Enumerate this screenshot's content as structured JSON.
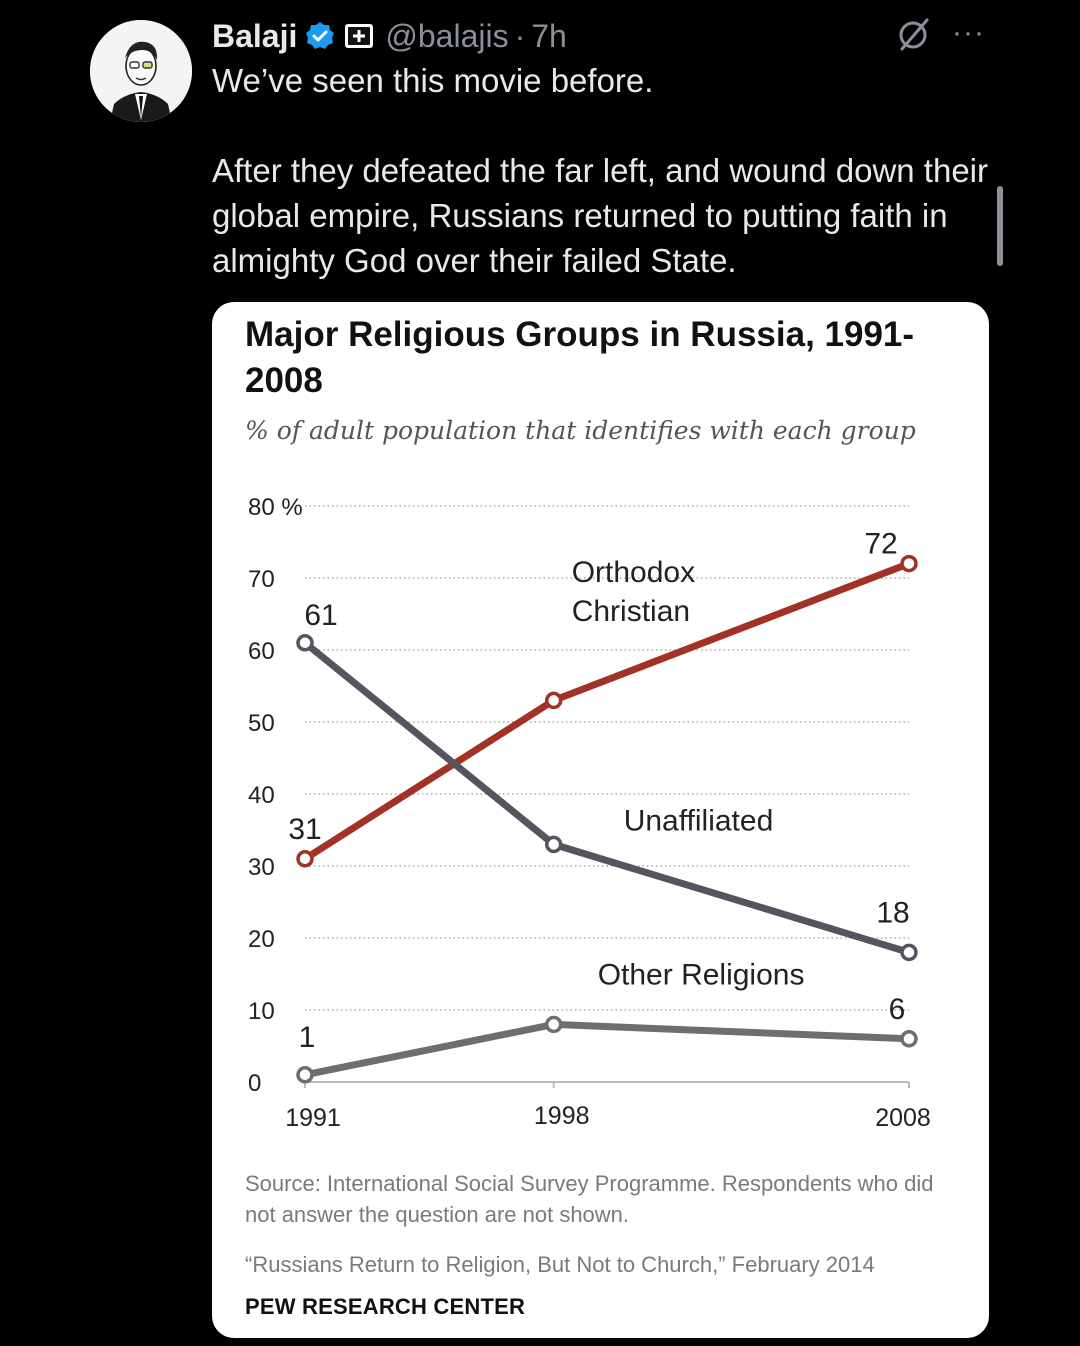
{
  "tweet": {
    "author_name": "Balaji",
    "handle": "@balajis",
    "time": "7h",
    "separator": "·",
    "more_label": "···",
    "text_lines": [
      "We’ve seen this movie before.",
      "After they defeated the far left, and wound down their global empire, Russians returned to putting faith in almighty God over their failed State."
    ]
  },
  "colors": {
    "background": "#000000",
    "verified": "#1d9bf0",
    "orthodox": "#a23225",
    "unaffiliated": "#57535f",
    "other": "#6e6e6e"
  },
  "chart_data": {
    "type": "line",
    "title": "Major Religious Groups in Russia, 1991-2008",
    "subtitle": "% of adult population that identifies with each group",
    "x": [
      1991,
      1998,
      2008
    ],
    "x_tick_labels": [
      "1991",
      "1998",
      "2008"
    ],
    "y_ticks": [
      0,
      10,
      20,
      30,
      40,
      50,
      60,
      70,
      80
    ],
    "y_tick_labels": [
      "0",
      "10",
      "20",
      "30",
      "40",
      "50",
      "60",
      "70",
      "80 %"
    ],
    "ylim": [
      0,
      80
    ],
    "grid": true,
    "series": [
      {
        "name": "Orthodox Christian",
        "name_lines": [
          "Orthodox",
          "Christian"
        ],
        "values": [
          31,
          53,
          72
        ],
        "labels": [
          "31",
          "",
          "72"
        ],
        "color": "#a23225"
      },
      {
        "name": "Unaffiliated",
        "name_lines": [
          "Unaffiliated"
        ],
        "values": [
          61,
          33,
          18
        ],
        "labels": [
          "61",
          "",
          "18"
        ],
        "color": "#57535f"
      },
      {
        "name": "Other Religions",
        "name_lines": [
          "Other Religions"
        ],
        "values": [
          1,
          8,
          6
        ],
        "labels": [
          "1",
          "",
          "6"
        ],
        "color": "#6e6e6e"
      }
    ],
    "source": "Source: International Social Survey Programme. Respondents who did not answer the question are not shown.",
    "citation": "“Russians Return to Religion, But Not to Church,” February 2014",
    "brand": "PEW RESEARCH CENTER"
  }
}
